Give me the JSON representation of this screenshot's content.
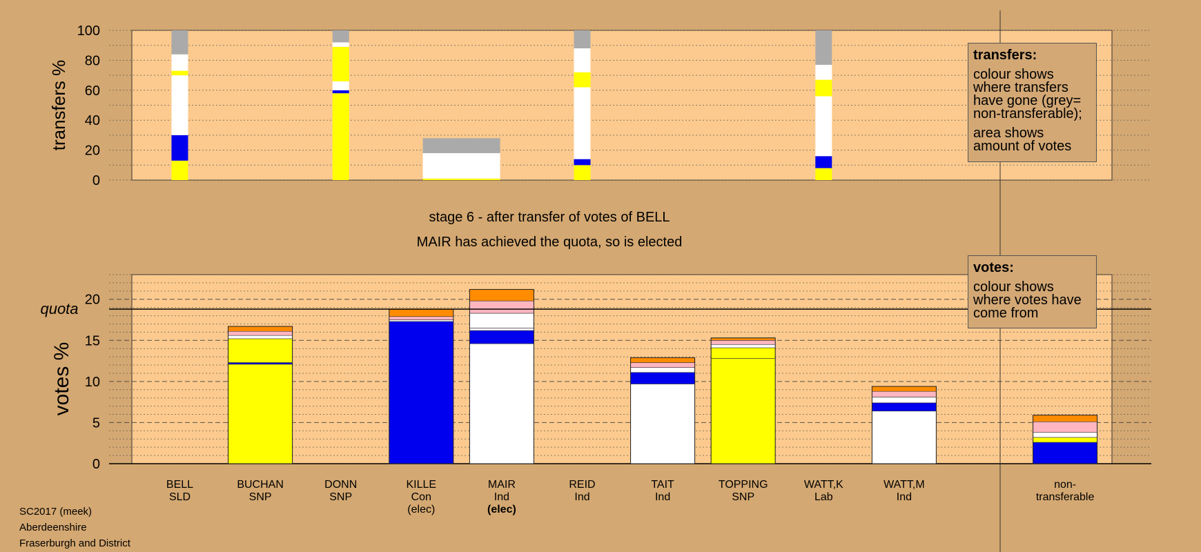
{
  "colors": {
    "background": "#d4a872",
    "plot_bg": "#fcca8e",
    "Ind": "#ffffff",
    "SNP": "#ffff00",
    "Con": "#0000ee",
    "Lab": "#ffb6c1",
    "SLD": "#ff8c00",
    "nontransferable": "#aaaaaa"
  },
  "stage": {
    "title": "stage 6 - after transfer of votes of BELL",
    "subtitle": "MAIR has achieved the quota, so is elected"
  },
  "legend_transfers": {
    "heading": "transfers:",
    "line1": "colour shows where transfers have gone (grey= non-transferable);",
    "line2": "area shows amount of votes"
  },
  "legend_votes": {
    "heading": "votes:",
    "line1": "colour shows where votes have come from"
  },
  "footer": {
    "line1": "SC2017 (meek)",
    "line2": "Aberdeenshire",
    "line3": "Fraserburgh and District"
  },
  "chart_data": [
    {
      "type": "bar",
      "name": "transfers",
      "ylabel": "transfers %",
      "ylim": [
        0,
        100
      ],
      "yticks": [
        0,
        20,
        40,
        60,
        80,
        100
      ],
      "grid": true,
      "bars": [
        {
          "slot": 0,
          "segments": [
            {
              "party": "SNP",
              "value": 13
            },
            {
              "party": "Con",
              "value": 17
            },
            {
              "party": "Ind",
              "value": 40
            },
            {
              "party": "SNP",
              "value": 3
            },
            {
              "party": "Ind",
              "value": 11
            },
            {
              "party": "nontransferable",
              "value": 16
            }
          ]
        },
        {
          "slot": 2,
          "segments": [
            {
              "party": "SNP",
              "value": 58
            },
            {
              "party": "Con",
              "value": 2
            },
            {
              "party": "Ind",
              "value": 6
            },
            {
              "party": "SNP",
              "value": 23
            },
            {
              "party": "Ind",
              "value": 3
            },
            {
              "party": "nontransferable",
              "value": 8
            }
          ]
        },
        {
          "slot": 3.5,
          "wide": true,
          "segments": [
            {
              "party": "SNP",
              "value": 1
            },
            {
              "party": "Ind",
              "value": 17
            },
            {
              "party": "nontransferable",
              "value": 10
            }
          ]
        },
        {
          "slot": 5,
          "segments": [
            {
              "party": "SNP",
              "value": 10
            },
            {
              "party": "Con",
              "value": 4
            },
            {
              "party": "Ind",
              "value": 48
            },
            {
              "party": "SNP",
              "value": 10
            },
            {
              "party": "Ind",
              "value": 16
            },
            {
              "party": "nontransferable",
              "value": 12
            }
          ]
        },
        {
          "slot": 8,
          "segments": [
            {
              "party": "SNP",
              "value": 8
            },
            {
              "party": "Con",
              "value": 8
            },
            {
              "party": "Ind",
              "value": 40
            },
            {
              "party": "SNP",
              "value": 11
            },
            {
              "party": "Ind",
              "value": 10
            },
            {
              "party": "nontransferable",
              "value": 23
            }
          ]
        }
      ]
    },
    {
      "type": "bar",
      "name": "votes",
      "ylabel": "votes %",
      "ylim": [
        0,
        23
      ],
      "yticks": [
        0,
        5,
        10,
        15,
        20
      ],
      "quota": 18.8,
      "quota_label": "quota",
      "grid": true,
      "candidates": [
        {
          "name": "BELL",
          "party": "SLD",
          "elected": "",
          "segments": []
        },
        {
          "name": "BUCHAN",
          "party": "SNP",
          "elected": "",
          "segments": [
            {
              "party": "SNP",
              "value": 12.1
            },
            {
              "party": "Con",
              "value": 0.2
            },
            {
              "party": "SNP",
              "value": 2.9
            },
            {
              "party": "Ind",
              "value": 0.4
            },
            {
              "party": "Lab",
              "value": 0.5
            },
            {
              "party": "SLD",
              "value": 0.6
            }
          ]
        },
        {
          "name": "DONN",
          "party": "SNP",
          "elected": "",
          "segments": []
        },
        {
          "name": "KILLE",
          "party": "Con",
          "elected": "(elec)",
          "segments": [
            {
              "party": "Con",
              "value": 17.3
            },
            {
              "party": "Ind",
              "value": 0.2
            },
            {
              "party": "Lab",
              "value": 0.4
            },
            {
              "party": "SLD",
              "value": 0.9
            }
          ]
        },
        {
          "name": "MAIR",
          "party": "Ind",
          "elected": "(elec)",
          "segments": [
            {
              "party": "Ind",
              "value": 14.6
            },
            {
              "party": "Con",
              "value": 1.6
            },
            {
              "party": "Ind",
              "value": 0.3
            },
            {
              "party": "Ind",
              "value": 1.8
            },
            {
              "party": "Lab",
              "value": 1.5
            },
            {
              "party": "SLD",
              "value": 1.4
            }
          ]
        },
        {
          "name": "REID",
          "party": "Ind",
          "elected": "",
          "segments": []
        },
        {
          "name": "TAIT",
          "party": "Ind",
          "elected": "",
          "segments": [
            {
              "party": "Ind",
              "value": 9.7
            },
            {
              "party": "Con",
              "value": 1.4
            },
            {
              "party": "Ind",
              "value": 0.6
            },
            {
              "party": "Lab",
              "value": 0.6
            },
            {
              "party": "SLD",
              "value": 0.6
            }
          ]
        },
        {
          "name": "TOPPING",
          "party": "SNP",
          "elected": "",
          "segments": [
            {
              "party": "SNP",
              "value": 12.8
            },
            {
              "party": "SNP",
              "value": 1.3
            },
            {
              "party": "Ind",
              "value": 0.4
            },
            {
              "party": "Lab",
              "value": 0.5
            },
            {
              "party": "SLD",
              "value": 0.3
            }
          ]
        },
        {
          "name": "WATT,K",
          "party": "Lab",
          "elected": "",
          "segments": []
        },
        {
          "name": "WATT,M",
          "party": "Ind",
          "elected": "",
          "segments": [
            {
              "party": "Ind",
              "value": 6.4
            },
            {
              "party": "Con",
              "value": 1.0
            },
            {
              "party": "Ind",
              "value": 0.7
            },
            {
              "party": "Lab",
              "value": 0.7
            },
            {
              "party": "SLD",
              "value": 0.6
            }
          ]
        },
        {
          "name": "non-",
          "party": "transferable",
          "elected": "",
          "slot": 11,
          "segments": [
            {
              "party": "Con",
              "value": 2.6
            },
            {
              "party": "SNP",
              "value": 0.6
            },
            {
              "party": "Ind",
              "value": 0.6
            },
            {
              "party": "Lab",
              "value": 1.3
            },
            {
              "party": "SLD",
              "value": 0.8
            }
          ]
        }
      ]
    }
  ]
}
